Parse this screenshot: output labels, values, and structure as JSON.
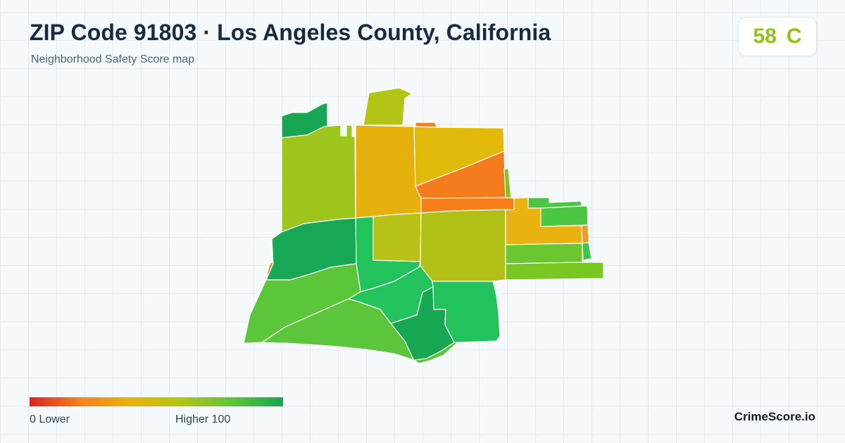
{
  "header": {
    "title": "ZIP Code 91803 · Los Angeles County, California",
    "subtitle": "Neighborhood Safety Score map"
  },
  "score_badge": {
    "score": "58",
    "grade": "C",
    "color": "#8ec21a"
  },
  "legend": {
    "min_label": "0  Lower",
    "max_label": "Higher  100",
    "gradient": [
      "#d7261e",
      "#f5821f",
      "#e8b10c",
      "#b2c416",
      "#5cc43a",
      "#16a651"
    ]
  },
  "brand": "CrimeScore.io",
  "map": {
    "zip": "91803",
    "regions": [
      {
        "id": "nw-top",
        "color": "#17a653"
      },
      {
        "id": "north-spire",
        "color": "#b2c416"
      },
      {
        "id": "west-upper",
        "color": "#9ec51c"
      },
      {
        "id": "north-center",
        "color": "#e7b10d"
      },
      {
        "id": "ne-upper",
        "color": "#e0b90b"
      },
      {
        "id": "ne-top-notch",
        "color": "#f0841e"
      },
      {
        "id": "ne-orange",
        "color": "#f57c1c"
      },
      {
        "id": "east-sliver",
        "color": "#86c320"
      },
      {
        "id": "center-strip",
        "color": "#f67e1b"
      },
      {
        "id": "west-middle",
        "color": "#18a855"
      },
      {
        "id": "center-west",
        "color": "#22c35c"
      },
      {
        "id": "center-square",
        "color": "#b7c117"
      },
      {
        "id": "center-big",
        "color": "#b0c017"
      },
      {
        "id": "east-top-small",
        "color": "#4dc445"
      },
      {
        "id": "east-amber",
        "color": "#e9b20e"
      },
      {
        "id": "east-right-green",
        "color": "#4bc744"
      },
      {
        "id": "east-orange-strip",
        "color": "#f09a1c"
      },
      {
        "id": "east-lower-green",
        "color": "#6cc62f"
      },
      {
        "id": "east-green-tip",
        "color": "#3ec44b"
      },
      {
        "id": "east-bottom-band",
        "color": "#79c822"
      },
      {
        "id": "sw-band",
        "color": "#5cc63a"
      },
      {
        "id": "south-west-lower",
        "color": "#5bc53b"
      },
      {
        "id": "south-mid",
        "color": "#25c35e"
      },
      {
        "id": "south-dark",
        "color": "#17a753"
      },
      {
        "id": "se-green",
        "color": "#22c35c"
      },
      {
        "id": "west-edge-orange",
        "color": "#e79a1c"
      }
    ]
  }
}
